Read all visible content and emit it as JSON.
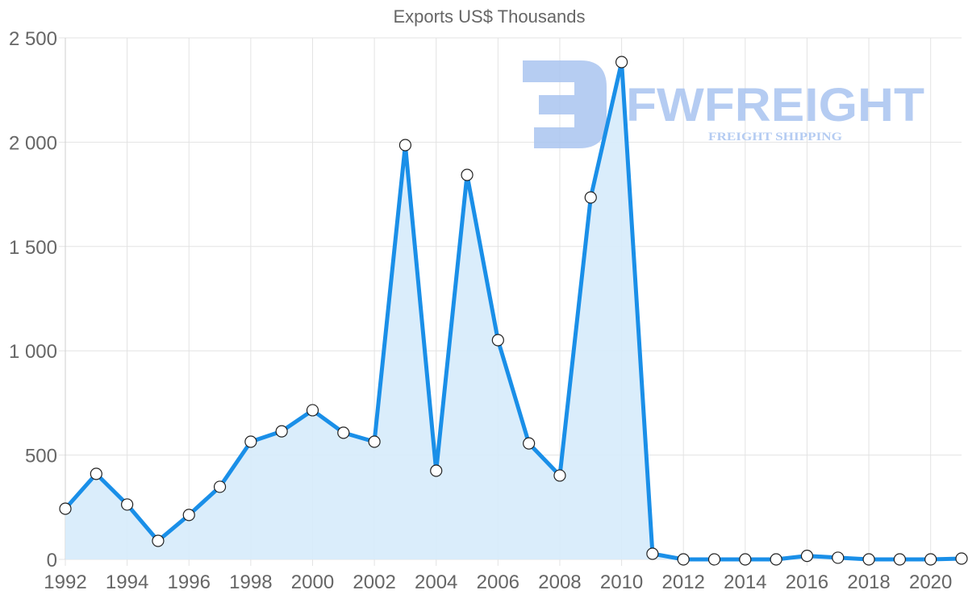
{
  "chart_data": {
    "type": "line",
    "title": "Exports US$ Thousands",
    "xlabel": "",
    "ylabel": "",
    "ylim": [
      0,
      2500
    ],
    "yticks": [
      "0",
      "500",
      "1 000",
      "1 500",
      "2 000",
      "2 500"
    ],
    "ytick_values": [
      0,
      500,
      1000,
      1500,
      2000,
      2500
    ],
    "xticks": [
      "1992",
      "1994",
      "1996",
      "1998",
      "2000",
      "2002",
      "2004",
      "2006",
      "2008",
      "2010",
      "2012",
      "2014",
      "2016",
      "2018",
      "2020"
    ],
    "grid": true,
    "legend": null,
    "fill": true,
    "x": [
      1992,
      1993,
      1994,
      1995,
      1996,
      1997,
      1998,
      1999,
      2000,
      2001,
      2002,
      2003,
      2004,
      2005,
      2006,
      2007,
      2008,
      2009,
      2010,
      2011,
      2012,
      2013,
      2014,
      2015,
      2016,
      2017,
      2018,
      2019,
      2020,
      2021
    ],
    "series": [
      {
        "name": "Exports US$ Thousands",
        "color": "#1a8fe8",
        "fill_color": "#d6ebfb",
        "values": [
          243,
          410,
          263,
          89,
          213,
          348,
          564,
          614,
          715,
          607,
          564,
          1986,
          425,
          1843,
          1051,
          556,
          402,
          1735,
          2384,
          27,
          0,
          0,
          0,
          0,
          17,
          8,
          0,
          0,
          0,
          4
        ]
      }
    ]
  },
  "watermark": {
    "brand": "FWFREIGHT",
    "tagline": "FREIGHT SHIPPING",
    "color": "#a9c4f0"
  }
}
